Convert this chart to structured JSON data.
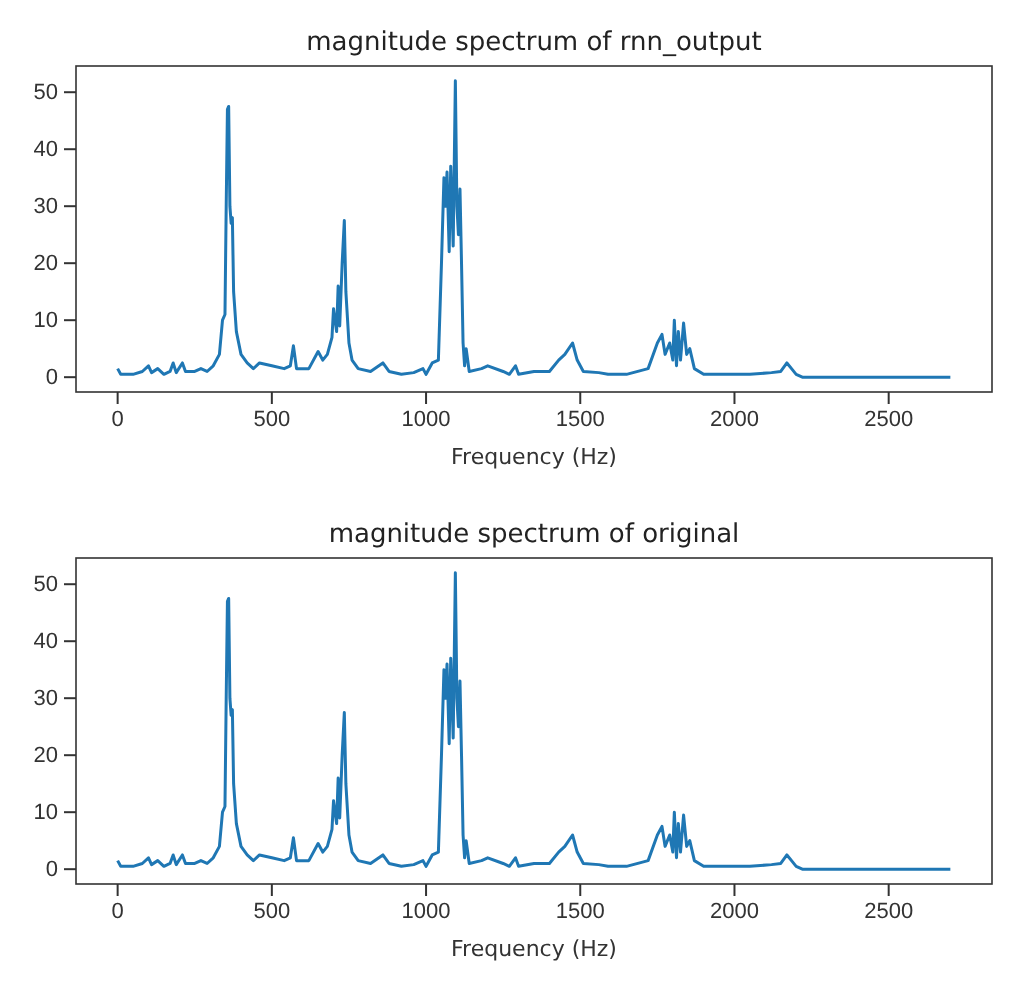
{
  "chart_data": [
    {
      "type": "line",
      "title": "magnitude spectrum of rnn_output",
      "xlabel": "Frequency (Hz)",
      "xlim": [
        -135,
        2835
      ],
      "ylim": [
        -2.6,
        54.6
      ],
      "xticks": [
        0,
        500,
        1000,
        1500,
        2000,
        2500
      ],
      "yticks": [
        0,
        10,
        20,
        30,
        40,
        50
      ],
      "x": [
        0,
        10,
        50,
        80,
        100,
        110,
        130,
        150,
        170,
        180,
        190,
        210,
        220,
        250,
        270,
        290,
        310,
        330,
        340,
        348,
        352,
        356,
        360,
        364,
        368,
        372,
        376,
        385,
        400,
        420,
        440,
        460,
        500,
        540,
        560,
        570,
        580,
        620,
        650,
        665,
        680,
        695,
        700,
        710,
        715,
        720,
        728,
        735,
        740,
        750,
        760,
        780,
        820,
        860,
        880,
        920,
        960,
        990,
        1000,
        1020,
        1040,
        1050,
        1058,
        1063,
        1068,
        1075,
        1080,
        1088,
        1095,
        1100,
        1105,
        1110,
        1115,
        1120,
        1125,
        1130,
        1140,
        1180,
        1200,
        1250,
        1270,
        1290,
        1300,
        1350,
        1400,
        1430,
        1450,
        1475,
        1490,
        1510,
        1560,
        1590,
        1650,
        1720,
        1750,
        1765,
        1775,
        1790,
        1800,
        1805,
        1812,
        1818,
        1825,
        1835,
        1845,
        1855,
        1870,
        1900,
        1950,
        2050,
        2120,
        2150,
        2170,
        2185,
        2200,
        2220,
        2400,
        2700
      ],
      "series": [
        {
          "color": "#1f77b4",
          "values": [
            1.5,
            0.5,
            0.5,
            1,
            2,
            0.8,
            1.5,
            0.5,
            1,
            2.5,
            0.8,
            2.5,
            1,
            1,
            1.5,
            1,
            2,
            4,
            10,
            11,
            30,
            47,
            47.5,
            30,
            27,
            28,
            15,
            8,
            4,
            2.5,
            1.5,
            2.5,
            2,
            1.5,
            2,
            5.5,
            1.5,
            1.5,
            4.5,
            3,
            4,
            7,
            12,
            8,
            16,
            9,
            20,
            27.5,
            15,
            6,
            3,
            1.5,
            1,
            2.5,
            1,
            0.5,
            0.8,
            1.5,
            0.5,
            2.5,
            3,
            20,
            35,
            30,
            36,
            22,
            37,
            23,
            52,
            30,
            25,
            33,
            20,
            6,
            2,
            5,
            1,
            1.5,
            2,
            1,
            0.5,
            2,
            0.5,
            1,
            1,
            3,
            4,
            6,
            3,
            1,
            0.8,
            0.5,
            0.5,
            1.5,
            6,
            7.5,
            4,
            6,
            3,
            10,
            2,
            8,
            3,
            9.5,
            4,
            5,
            1.5,
            0.5,
            0.5,
            0.5,
            0.8,
            1,
            2.5,
            1.5,
            0.5,
            0,
            0,
            0
          ]
        }
      ]
    },
    {
      "type": "line",
      "title": "magnitude spectrum of original",
      "xlabel": "Frequency (Hz)",
      "xlim": [
        -135,
        2835
      ],
      "ylim": [
        -2.6,
        54.6
      ],
      "xticks": [
        0,
        500,
        1000,
        1500,
        2000,
        2500
      ],
      "yticks": [
        0,
        10,
        20,
        30,
        40,
        50
      ],
      "x": [
        0,
        10,
        50,
        80,
        100,
        110,
        130,
        150,
        170,
        180,
        190,
        210,
        220,
        250,
        270,
        290,
        310,
        330,
        340,
        348,
        352,
        356,
        360,
        364,
        368,
        372,
        376,
        385,
        400,
        420,
        440,
        460,
        500,
        540,
        560,
        570,
        580,
        620,
        650,
        665,
        680,
        695,
        700,
        710,
        715,
        720,
        728,
        735,
        740,
        750,
        760,
        780,
        820,
        860,
        880,
        920,
        960,
        990,
        1000,
        1020,
        1040,
        1050,
        1058,
        1063,
        1068,
        1075,
        1080,
        1088,
        1095,
        1100,
        1105,
        1110,
        1115,
        1120,
        1125,
        1130,
        1140,
        1180,
        1200,
        1250,
        1270,
        1290,
        1300,
        1350,
        1400,
        1430,
        1450,
        1475,
        1490,
        1510,
        1560,
        1590,
        1650,
        1720,
        1750,
        1765,
        1775,
        1790,
        1800,
        1805,
        1812,
        1818,
        1825,
        1835,
        1845,
        1855,
        1870,
        1900,
        1950,
        2050,
        2120,
        2150,
        2170,
        2185,
        2200,
        2220,
        2400,
        2700
      ],
      "series": [
        {
          "color": "#1f77b4",
          "values": [
            1.5,
            0.5,
            0.5,
            1,
            2,
            0.8,
            1.5,
            0.5,
            1,
            2.5,
            0.8,
            2.5,
            1,
            1,
            1.5,
            1,
            2,
            4,
            10,
            11,
            30,
            47,
            47.5,
            30,
            27,
            28,
            15,
            8,
            4,
            2.5,
            1.5,
            2.5,
            2,
            1.5,
            2,
            5.5,
            1.5,
            1.5,
            4.5,
            3,
            4,
            7,
            12,
            8,
            16,
            9,
            20,
            27.5,
            15,
            6,
            3,
            1.5,
            1,
            2.5,
            1,
            0.5,
            0.8,
            1.5,
            0.5,
            2.5,
            3,
            20,
            35,
            30,
            36,
            22,
            37,
            23,
            52,
            30,
            25,
            33,
            20,
            6,
            2,
            5,
            1,
            1.5,
            2,
            1,
            0.5,
            2,
            0.5,
            1,
            1,
            3,
            4,
            6,
            3,
            1,
            0.8,
            0.5,
            0.5,
            1.5,
            6,
            7.5,
            4,
            6,
            3,
            10,
            2,
            8,
            3,
            9.5,
            4,
            5,
            1.5,
            0.5,
            0.5,
            0.5,
            0.8,
            1,
            2.5,
            1.5,
            0.5,
            0,
            0,
            0
          ]
        }
      ]
    }
  ]
}
